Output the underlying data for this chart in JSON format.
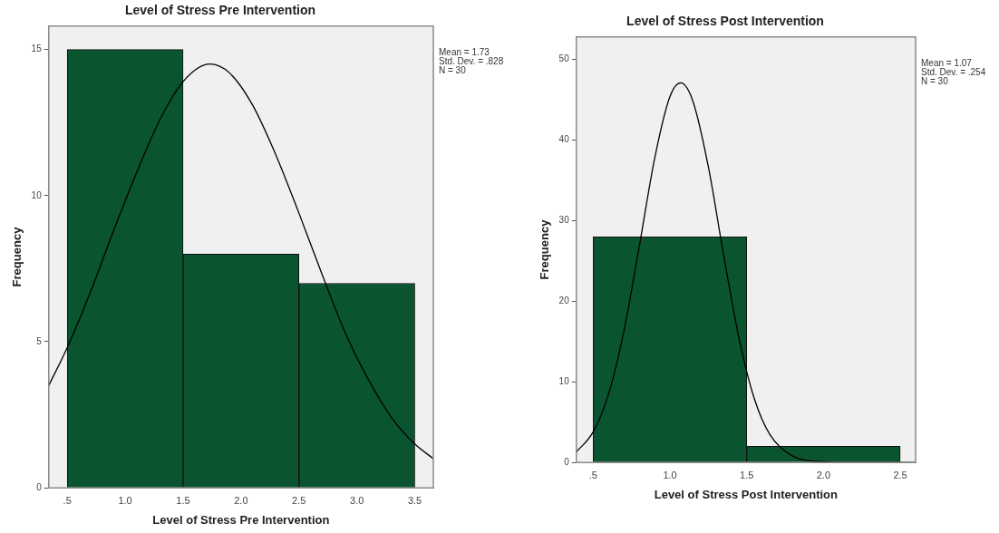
{
  "chart_data": [
    {
      "type": "histogram",
      "title": "Level of Stress Pre Intervention",
      "xlabel": "Level of Stress Pre Intervention",
      "ylabel": "Frequency",
      "series": [
        {
          "type": "line",
          "color": "#000000",
          "x": [
            0.34,
            0.5,
            0.7,
            0.9,
            1.1,
            1.3,
            1.5,
            1.73,
            1.9,
            2.1,
            2.3,
            2.5,
            2.7,
            2.9,
            3.1,
            3.3,
            3.5,
            3.66
          ],
          "values": [
            3.5,
            4.8,
            6.7,
            8.8,
            10.8,
            12.6,
            13.9,
            14.5,
            14.2,
            13.1,
            11.4,
            9.4,
            7.3,
            5.3,
            3.7,
            2.4,
            1.5,
            1.0
          ]
        },
        {
          "type": "histogram",
          "color": "#0b5430",
          "bins": [
            0.5,
            1.5,
            2.5,
            3.5
          ],
          "values": [
            15,
            8,
            7
          ]
        }
      ],
      "xlim": [
        0.34,
        3.66
      ],
      "xticks": [
        {
          "value": 0.5,
          "label": ".5"
        },
        {
          "value": 1,
          "label": "1.0"
        },
        {
          "value": 1.5,
          "label": "1.5"
        },
        {
          "value": 2,
          "label": "2.0"
        },
        {
          "value": 2.5,
          "label": "2.5"
        },
        {
          "value": 3,
          "label": "3.0"
        },
        {
          "value": 3.5,
          "label": "3.5"
        }
      ],
      "ylim": [
        0,
        15.8
      ],
      "yticks": [
        0,
        5,
        10,
        15
      ],
      "annotations": [
        "Mean = 1.73",
        "Std. Dev. = .828",
        "N = 30"
      ],
      "grid": false,
      "legend": false,
      "marker": "none",
      "line_style": "solid"
    },
    {
      "type": "histogram",
      "title": "Level of Stress Post Intervention",
      "xlabel": "Level of Stress Post Intervention",
      "ylabel": "Frequency",
      "series": [
        {
          "type": "line",
          "color": "#000000",
          "x": [
            0.39,
            0.5,
            0.6,
            0.7,
            0.8,
            0.9,
            1.0,
            1.07,
            1.15,
            1.25,
            1.35,
            1.45,
            1.55,
            1.65,
            1.8,
            2.0,
            2.2,
            2.6
          ],
          "values": [
            1.3,
            3.8,
            8.5,
            16.3,
            26.8,
            37.7,
            45.4,
            47.1,
            44.8,
            36.7,
            25.7,
            15.4,
            7.9,
            3.5,
            0.8,
            0.1,
            0,
            0
          ]
        },
        {
          "type": "histogram",
          "color": "#0b5430",
          "bins": [
            0.5,
            1.5,
            2.5
          ],
          "values": [
            28,
            2
          ]
        }
      ],
      "xlim": [
        0.39,
        2.6
      ],
      "xticks": [
        {
          "value": 0.5,
          "label": ".5"
        },
        {
          "value": 1,
          "label": "1.0"
        },
        {
          "value": 1.5,
          "label": "1.5"
        },
        {
          "value": 2,
          "label": "2.0"
        },
        {
          "value": 2.5,
          "label": "2.5"
        }
      ],
      "ylim": [
        0,
        52.8
      ],
      "yticks": [
        0,
        10,
        20,
        30,
        40,
        50
      ],
      "annotations": [
        "Mean = 1.07",
        "Std. Dev. = .254",
        "N = 30"
      ],
      "grid": false,
      "legend": false,
      "marker": "none",
      "line_style": "solid"
    }
  ]
}
